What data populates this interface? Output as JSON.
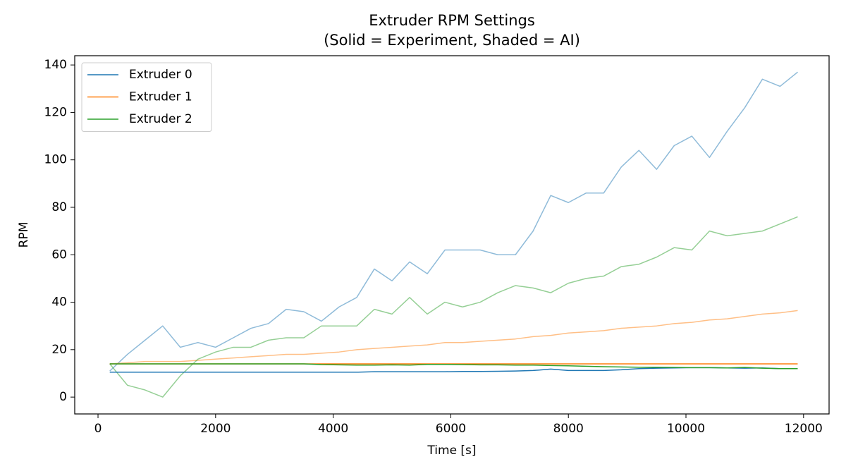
{
  "chart_data": {
    "type": "line",
    "title": "Extruder RPM Settings",
    "subtitle": "(Solid = Experiment, Shaded = AI)",
    "x_label": "Time [s]",
    "y_label": "RPM",
    "x": [
      200,
      500,
      800,
      1100,
      1400,
      1700,
      2000,
      2300,
      2600,
      2900,
      3200,
      3500,
      3800,
      4100,
      4400,
      4700,
      5000,
      5300,
      5600,
      5900,
      6200,
      6500,
      6800,
      7100,
      7400,
      7700,
      8000,
      8300,
      8600,
      8900,
      9200,
      9500,
      9800,
      10100,
      10400,
      10700,
      11000,
      11300,
      11600,
      11900
    ],
    "series": [
      {
        "color": "#1f77b4",
        "alpha": 0.5,
        "values": [
          11,
          18,
          24,
          30,
          21,
          23,
          21,
          25,
          29,
          31,
          37,
          36,
          32,
          38,
          42,
          54,
          49,
          57,
          52,
          62,
          62,
          62,
          60,
          60,
          70,
          85,
          82,
          86,
          86,
          97,
          104,
          96,
          106,
          110,
          101,
          112,
          122,
          134,
          131,
          137
        ]
      },
      {
        "color": "#ff7f0e",
        "alpha": 0.5,
        "values": [
          14,
          14.5,
          15,
          15,
          15,
          15.5,
          16,
          16.5,
          17,
          17.5,
          18,
          18,
          18.5,
          19,
          20,
          20.5,
          21,
          21.5,
          22,
          23,
          23,
          23.5,
          24,
          24.5,
          25.5,
          26,
          27,
          27.5,
          28,
          29,
          29.5,
          30,
          31,
          31.5,
          32.5,
          33,
          34,
          35,
          35.5,
          36.5
        ]
      },
      {
        "color": "#2ca02c",
        "alpha": 0.5,
        "values": [
          14,
          5,
          3,
          0,
          9,
          16,
          19,
          21,
          21,
          24,
          25,
          25,
          30,
          30,
          30,
          37,
          35,
          42,
          35,
          40,
          38,
          40,
          44,
          47,
          46,
          44,
          48,
          50,
          51,
          55,
          56,
          59,
          63,
          62,
          70,
          68,
          69,
          70,
          73,
          76
        ]
      },
      {
        "name": "Extruder 0",
        "color": "#1f77b4",
        "alpha": 1,
        "values": [
          10.5,
          10.5,
          10.5,
          10.5,
          10.5,
          10.5,
          10.5,
          10.5,
          10.5,
          10.5,
          10.5,
          10.5,
          10.5,
          10.5,
          10.5,
          10.7,
          10.7,
          10.7,
          10.7,
          10.7,
          10.8,
          10.8,
          10.9,
          11,
          11.2,
          11.8,
          11.2,
          11.2,
          11.2,
          11.5,
          12,
          12.2,
          12.3,
          12.4,
          12.4,
          12.3,
          12.2,
          12.3,
          12,
          12
        ]
      },
      {
        "name": "Extruder 1",
        "color": "#ff7f0e",
        "alpha": 1,
        "values": [
          14,
          14,
          14,
          14,
          14,
          14,
          14,
          14,
          14,
          14,
          14,
          14,
          14,
          14,
          14,
          14,
          14,
          14,
          14,
          14,
          14,
          14,
          14,
          14,
          14,
          14,
          14,
          14,
          14,
          14,
          14,
          14,
          14,
          14,
          14,
          14,
          14,
          14,
          14,
          14
        ]
      },
      {
        "name": "Extruder 2",
        "color": "#2ca02c",
        "alpha": 1,
        "values": [
          14,
          14,
          14,
          14,
          14,
          14,
          14,
          14,
          14,
          14,
          14,
          14,
          13.7,
          13.6,
          13.5,
          13.5,
          13.6,
          13.5,
          13.8,
          13.8,
          13.7,
          13.6,
          13.6,
          13.5,
          13.5,
          13.3,
          13.2,
          13.0,
          12.8,
          12.7,
          12.6,
          12.6,
          12.5,
          12.4,
          12.4,
          12.3,
          12.5,
          12.2,
          12.0,
          12.0
        ]
      }
    ],
    "xlim": [
      -396,
      12434
    ],
    "ylim": [
      -7.1,
      143.9
    ],
    "xticks": [
      0,
      2000,
      4000,
      6000,
      8000,
      10000,
      12000
    ],
    "yticks": [
      0,
      20,
      40,
      60,
      80,
      100,
      120,
      140
    ],
    "grid": false,
    "legend": "upper left"
  }
}
